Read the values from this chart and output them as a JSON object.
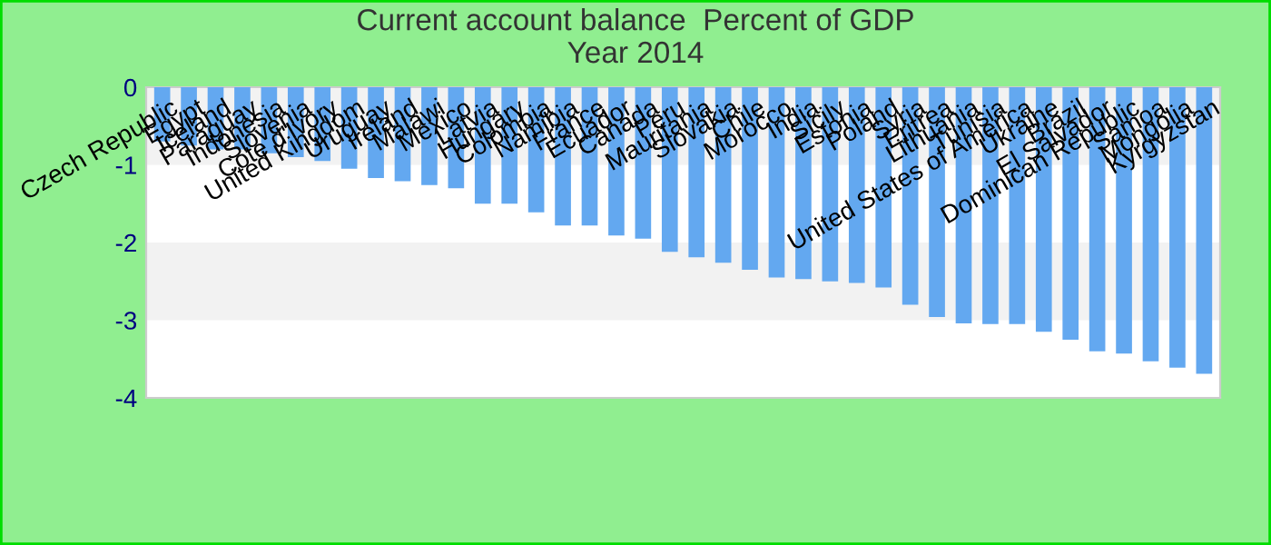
{
  "chart_data": {
    "type": "bar",
    "title": "Current account balance  Percent of GDP\nYear 2014",
    "categories": [
      "Czech Republic",
      "Egypt",
      "Iceland",
      "Paraguay",
      "Indonesia",
      "Slovenia",
      "Cote d'Ivory",
      "United Kingdom",
      "Uruguay",
      "Ireland",
      "Malawi",
      "Mexico",
      "Latvia",
      "Hungary",
      "Colombia",
      "Namibia",
      "France",
      "Ecuador",
      "Canada",
      "Peru",
      "Mauritania",
      "Slovakia",
      "Chile",
      "Morocco",
      "India",
      "Sicily",
      "Estonia",
      "Poland",
      "Syria",
      "Eritrea",
      "Lithuania",
      "Tunisia",
      "United States of America",
      "Ukraine",
      "Brazil",
      "El Salvador",
      "Dominican Republic",
      "Samoa",
      "Mongolia",
      "Kyrgyzstan"
    ],
    "values": [
      -0.7,
      -0.75,
      -0.8,
      -0.8,
      -0.85,
      -0.9,
      -0.95,
      -1.05,
      -1.17,
      -1.21,
      -1.26,
      -1.3,
      -1.5,
      -1.5,
      -1.61,
      -1.78,
      -1.78,
      -1.91,
      -1.95,
      -2.12,
      -2.19,
      -2.26,
      -2.35,
      -2.45,
      -2.47,
      -2.5,
      -2.52,
      -2.58,
      -2.8,
      -2.96,
      -3.04,
      -3.05,
      -3.05,
      -3.15,
      -3.25,
      -3.4,
      -3.43,
      -3.53,
      -3.61,
      -3.69
    ],
    "color": "#63a8f0",
    "ylim": [
      -4,
      0
    ],
    "yticks": [
      -4,
      -3,
      -2,
      -1,
      0
    ],
    "bands": [
      {
        "axis": "y",
        "from": -1,
        "to": 0,
        "color": "#f2f2f2"
      },
      {
        "axis": "y",
        "from": -3,
        "to": -2,
        "color": "#f2f2f2"
      }
    ]
  }
}
